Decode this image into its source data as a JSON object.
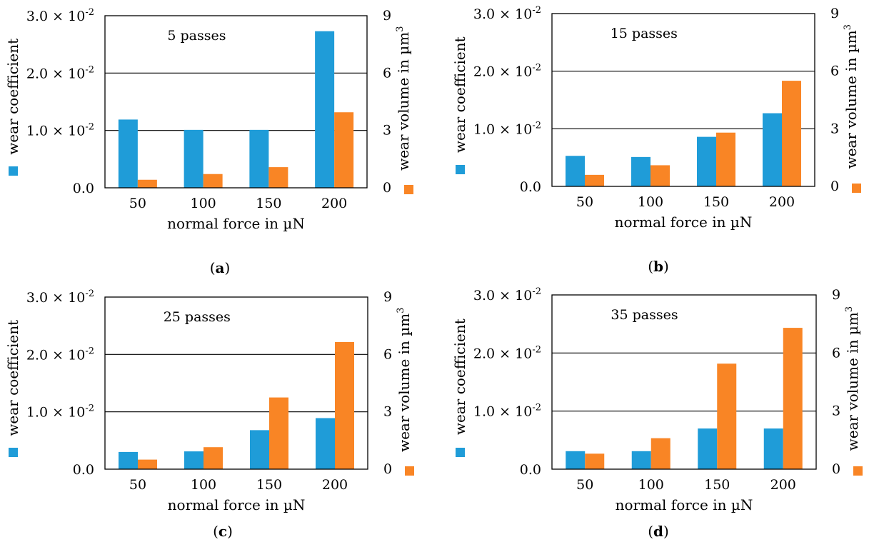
{
  "figure": {
    "colors": {
      "wear_coefficient": "#1f9cd8",
      "wear_volume": "#f98525"
    }
  },
  "chart_data": [
    {
      "type": "bar",
      "caption_letter": "a",
      "title": "5 passes",
      "categories": [
        "50",
        "100",
        "150",
        "200"
      ],
      "xlabel": "normal force in µN",
      "y_left": {
        "label": "wear coefficient",
        "ylim": [
          0,
          0.03
        ],
        "tick_labels": [
          {
            "mant": "0.0"
          },
          {
            "mant": "1.0",
            "exp": "-2"
          },
          {
            "mant": "2.0",
            "exp": "-2"
          },
          {
            "mant": "3.0",
            "exp": "-2"
          }
        ]
      },
      "y_right": {
        "label": "wear volume in µm",
        "label_sup": "3",
        "ylim": [
          0,
          9
        ],
        "tick_labels": [
          "0",
          "3",
          "6",
          "9"
        ]
      },
      "grid": "horizontal",
      "series": [
        {
          "axis": "left",
          "values": [
            0.0119,
            0.0101,
            0.0101,
            0.0273
          ]
        },
        {
          "axis": "right",
          "values": [
            0.42,
            0.72,
            1.08,
            3.95
          ]
        }
      ]
    },
    {
      "type": "bar",
      "caption_letter": "b",
      "title": "15 passes",
      "categories": [
        "50",
        "100",
        "150",
        "200"
      ],
      "xlabel": "normal force in µN",
      "y_left": {
        "label": "wear coefficient",
        "ylim": [
          0,
          0.03
        ],
        "tick_labels": [
          {
            "mant": "0.0"
          },
          {
            "mant": "1.0",
            "exp": "-2"
          },
          {
            "mant": "2.0",
            "exp": "-2"
          },
          {
            "mant": "3.0",
            "exp": "-2"
          }
        ]
      },
      "y_right": {
        "label": "wear volume in µm",
        "label_sup": "3",
        "ylim": [
          0,
          9
        ],
        "tick_labels": [
          "0",
          "3",
          "6",
          "9"
        ]
      },
      "grid": "horizontal",
      "series": [
        {
          "axis": "left",
          "values": [
            0.0053,
            0.0051,
            0.0086,
            0.0127
          ]
        },
        {
          "axis": "right",
          "values": [
            0.6,
            1.1,
            2.8,
            5.5
          ]
        }
      ]
    },
    {
      "type": "bar",
      "caption_letter": "c",
      "title": "25 passes",
      "categories": [
        "50",
        "100",
        "150",
        "200"
      ],
      "xlabel": "normal force in µN",
      "y_left": {
        "label": "wear coefficient",
        "ylim": [
          0,
          0.03
        ],
        "tick_labels": [
          {
            "mant": "0.0"
          },
          {
            "mant": "1.0",
            "exp": "-2"
          },
          {
            "mant": "2.0",
            "exp": "-2"
          },
          {
            "mant": "3.0",
            "exp": "-2"
          }
        ]
      },
      "y_right": {
        "label": "wear volume in µm",
        "label_sup": "3",
        "ylim": [
          0,
          9
        ],
        "tick_labels": [
          "0",
          "3",
          "6",
          "9"
        ]
      },
      "grid": "horizontal",
      "series": [
        {
          "axis": "left",
          "values": [
            0.003,
            0.0031,
            0.0068,
            0.0089
          ]
        },
        {
          "axis": "right",
          "values": [
            0.5,
            1.15,
            3.75,
            6.65
          ]
        }
      ]
    },
    {
      "type": "bar",
      "caption_letter": "d",
      "title": "35 passes",
      "categories": [
        "50",
        "100",
        "150",
        "200"
      ],
      "xlabel": "normal force in µN",
      "y_left": {
        "label": "wear coefficient",
        "ylim": [
          0,
          0.03
        ],
        "tick_labels": [
          {
            "mant": "0.0"
          },
          {
            "mant": "1.0",
            "exp": "-2"
          },
          {
            "mant": "2.0",
            "exp": "-2"
          },
          {
            "mant": "3.0",
            "exp": "-2"
          }
        ]
      },
      "y_right": {
        "label": "wear volume in µm",
        "label_sup": "3",
        "ylim": [
          0,
          9
        ],
        "tick_labels": [
          "0",
          "3",
          "6",
          "9"
        ]
      },
      "grid": "horizontal",
      "series": [
        {
          "axis": "left",
          "values": [
            0.0031,
            0.0031,
            0.007,
            0.007
          ]
        },
        {
          "axis": "right",
          "values": [
            0.8,
            1.6,
            5.45,
            7.3
          ]
        }
      ]
    }
  ]
}
